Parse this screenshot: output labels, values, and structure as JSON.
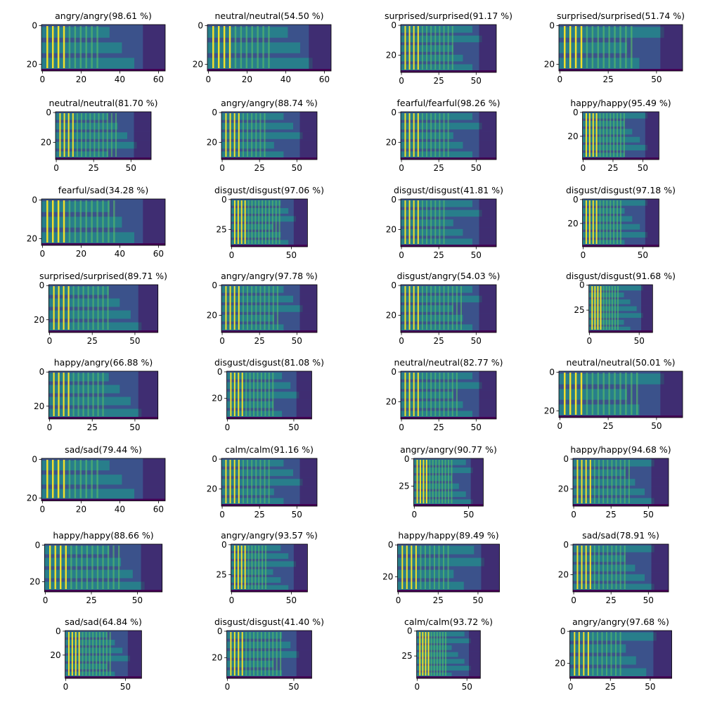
{
  "chart_data": {
    "type": "heatmap",
    "rows": 8,
    "cols": 4,
    "colormap": "viridis",
    "colors": [
      "#440154",
      "#3b528b",
      "#21918c",
      "#5ec962",
      "#fde725"
    ],
    "panels": [
      {
        "title": "angry/angry(98.61 %)",
        "height": 24,
        "width": 64,
        "xticks": [
          0,
          20,
          40,
          60
        ],
        "yticks": [
          0,
          20
        ]
      },
      {
        "title": "neutral/neutral(54.50 %)",
        "height": 24,
        "width": 64,
        "xticks": [
          0,
          20,
          40,
          60
        ],
        "yticks": [
          0,
          20
        ]
      },
      {
        "title": "surprised/surprised(91.17 %)",
        "height": 32,
        "width": 64,
        "xticks": [
          0,
          25,
          50
        ],
        "yticks": [
          0,
          20
        ]
      },
      {
        "title": "surprised/surprised(51.74 %)",
        "height": 24,
        "width": 64,
        "xticks": [
          0,
          25,
          50
        ],
        "yticks": [
          0,
          20
        ]
      },
      {
        "title": "neutral/neutral(81.70 %)",
        "height": 32,
        "width": 64,
        "xticks": [
          0,
          25,
          50
        ],
        "yticks": [
          0,
          20
        ]
      },
      {
        "title": "angry/angry(88.74 %)",
        "height": 32,
        "width": 64,
        "xticks": [
          0,
          25,
          50
        ],
        "yticks": [
          0,
          20
        ]
      },
      {
        "title": "fearful/fearful(98.26 %)",
        "height": 32,
        "width": 64,
        "xticks": [
          0,
          25,
          50
        ],
        "yticks": [
          0,
          20
        ]
      },
      {
        "title": "happy/happy(95.49 %)",
        "height": 40,
        "width": 64,
        "xticks": [
          0,
          25,
          50
        ],
        "yticks": [
          0,
          20
        ]
      },
      {
        "title": "fearful/sad(34.28 %)",
        "height": 24,
        "width": 64,
        "xticks": [
          0,
          20,
          40,
          60
        ],
        "yticks": [
          0,
          20
        ]
      },
      {
        "title": "disgust/disgust(97.06 %)",
        "height": 40,
        "width": 64,
        "xticks": [
          0,
          50
        ],
        "yticks": [
          0,
          25
        ]
      },
      {
        "title": "disgust/disgust(41.81 %)",
        "height": 32,
        "width": 64,
        "xticks": [
          0,
          25,
          50
        ],
        "yticks": [
          0,
          20
        ]
      },
      {
        "title": "disgust/disgust(97.18 %)",
        "height": 40,
        "width": 64,
        "xticks": [
          0,
          50
        ],
        "yticks": [
          0,
          20
        ]
      },
      {
        "title": "surprised/surprised(89.71 %)",
        "height": 28,
        "width": 64,
        "xticks": [
          0,
          25,
          50
        ],
        "yticks": [
          0,
          20
        ]
      },
      {
        "title": "angry/angry(97.78 %)",
        "height": 32,
        "width": 64,
        "xticks": [
          0,
          25,
          50
        ],
        "yticks": [
          0,
          20
        ]
      },
      {
        "title": "disgust/angry(54.03 %)",
        "height": 32,
        "width": 64,
        "xticks": [
          0,
          25,
          50
        ],
        "yticks": [
          0,
          20
        ]
      },
      {
        "title": "disgust/disgust(91.68 %)",
        "height": 48,
        "width": 64,
        "xticks": [
          0,
          50
        ],
        "yticks": [
          0,
          25
        ]
      },
      {
        "title": "happy/angry(66.88 %)",
        "height": 28,
        "width": 64,
        "xticks": [
          0,
          25,
          50
        ],
        "yticks": [
          0,
          20
        ]
      },
      {
        "title": "disgust/disgust(81.08 %)",
        "height": 36,
        "width": 64,
        "xticks": [
          0,
          50
        ],
        "yticks": [
          0,
          20
        ]
      },
      {
        "title": "neutral/neutral(82.77 %)",
        "height": 32,
        "width": 64,
        "xticks": [
          0,
          25,
          50
        ],
        "yticks": [
          0,
          20
        ]
      },
      {
        "title": "neutral/neutral(50.01 %)",
        "height": 24,
        "width": 64,
        "xticks": [
          0,
          25,
          50
        ],
        "yticks": [
          0,
          20
        ]
      },
      {
        "title": "sad/sad(79.44 %)",
        "height": 22,
        "width": 64,
        "xticks": [
          0,
          20,
          40,
          60
        ],
        "yticks": [
          0,
          20
        ]
      },
      {
        "title": "calm/calm(91.16 %)",
        "height": 32,
        "width": 64,
        "xticks": [
          0,
          25,
          50
        ],
        "yticks": [
          0,
          20
        ]
      },
      {
        "title": "angry/angry(90.77 %)",
        "height": 44,
        "width": 64,
        "xticks": [
          0,
          50
        ],
        "yticks": [
          0,
          25
        ]
      },
      {
        "title": "happy/happy(94.68 %)",
        "height": 32,
        "width": 64,
        "xticks": [
          0,
          25,
          50
        ],
        "yticks": [
          0,
          20
        ]
      },
      {
        "title": "happy/happy(88.66 %)",
        "height": 26,
        "width": 64,
        "xticks": [
          0,
          25,
          50
        ],
        "yticks": [
          0,
          20
        ]
      },
      {
        "title": "angry/angry(93.57 %)",
        "height": 40,
        "width": 64,
        "xticks": [
          0,
          50
        ],
        "yticks": [
          0,
          25
        ]
      },
      {
        "title": "happy/happy(89.49 %)",
        "height": 30,
        "width": 64,
        "xticks": [
          0,
          25,
          50
        ],
        "yticks": [
          0,
          20
        ]
      },
      {
        "title": "sad/sad(78.91 %)",
        "height": 32,
        "width": 64,
        "xticks": [
          0,
          25,
          50
        ],
        "yticks": [
          0,
          20
        ]
      },
      {
        "title": "sad/sad(64.84 %)",
        "height": 40,
        "width": 64,
        "xticks": [
          0,
          50
        ],
        "yticks": [
          0,
          20
        ]
      },
      {
        "title": "disgust/disgust(41.40 %)",
        "height": 36,
        "width": 64,
        "xticks": [
          0,
          50
        ],
        "yticks": [
          0,
          20
        ]
      },
      {
        "title": "calm/calm(93.72 %)",
        "height": 48,
        "width": 64,
        "xticks": [
          0,
          50
        ],
        "yticks": [
          0,
          25
        ]
      },
      {
        "title": "angry/angry(97.68 %)",
        "height": 30,
        "width": 64,
        "xticks": [
          0,
          25,
          50
        ],
        "yticks": [
          0,
          20
        ]
      }
    ]
  }
}
